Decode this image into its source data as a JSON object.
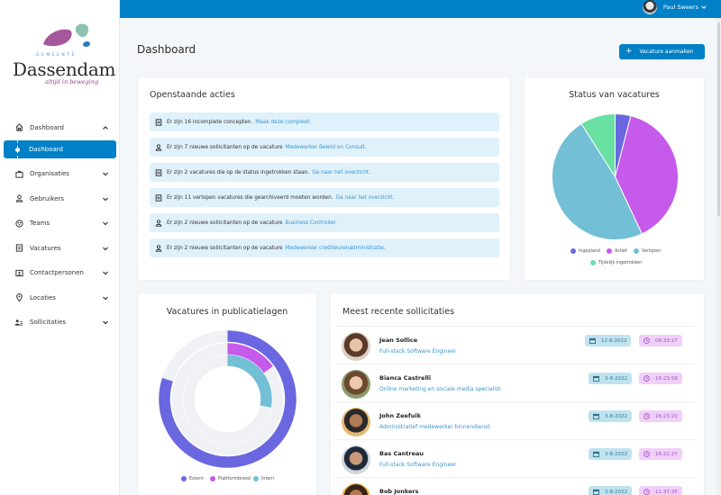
{
  "topbar": {
    "user_name": "Paul Sweers"
  },
  "logo": {
    "small": "GEMEENTE",
    "name": "Dassendam",
    "tagline": "altijd in beweging"
  },
  "sidebar": {
    "items": [
      {
        "label": "Dashboard",
        "icon": "home-icon",
        "expanded": true
      },
      {
        "label": "Organisaties",
        "icon": "briefcase-icon"
      },
      {
        "label": "Gebruikers",
        "icon": "user-icon"
      },
      {
        "label": "Teams",
        "icon": "team-icon"
      },
      {
        "label": "Vacatures",
        "icon": "document-icon"
      },
      {
        "label": "Contactpersonen",
        "icon": "contact-card-icon"
      },
      {
        "label": "Locaties",
        "icon": "location-pin-icon"
      },
      {
        "label": "Sollicitaties",
        "icon": "users-icon"
      }
    ],
    "active_sub": "Dashboard"
  },
  "main": {
    "title": "Dashboard",
    "create_button": "Vacature aanmaken"
  },
  "actions": {
    "title": "Openstaande acties",
    "items": [
      {
        "icon": "document-icon",
        "text": "Er zijn 16 incomplete concepten.",
        "link": "Maak deze compleet."
      },
      {
        "icon": "user-icon",
        "text": "Er zijn 7 nieuwe sollicitanten op de vacature",
        "link": "Medewerker Beleid en Consult."
      },
      {
        "icon": "document-icon",
        "text": "Er zijn 2 vacatures die op de status ingetrokken staan.",
        "link": "Ga naar het overzicht."
      },
      {
        "icon": "document-icon",
        "text": "Er zijn 11 verlopen vacatures die gearchiveerd moeten worden.",
        "link": "Ga naar het overzicht."
      },
      {
        "icon": "user-icon",
        "text": "Er zijn 2 nieuwe sollicitanten op de vacature",
        "link": "Business Controller."
      },
      {
        "icon": "user-icon",
        "text": "Er zijn 2 nieuwe sollicitanten op de vacature",
        "link": "Medewerker crediteurenadministratie."
      }
    ]
  },
  "status_chart": {
    "title": "Status van vacatures",
    "legend": [
      "Ingepland",
      "Actief",
      "Verlopen",
      "Tijdelijk ingetrokken"
    ]
  },
  "publication_chart": {
    "title": "Vacatures in publicatielagen",
    "legend": [
      "Extern",
      "Plattformbreed",
      "Intern"
    ]
  },
  "recent": {
    "title": "Meest recente sollicitaties",
    "rows": [
      {
        "name": "Jean Sollice",
        "job": "Full-stack Software Engineer",
        "date": "12-8-2022",
        "time": "08:33:27"
      },
      {
        "name": "Bianca Castrelli",
        "job": "Online marketing en sociale media specialist",
        "date": "3-8-2022",
        "time": "16:23:58"
      },
      {
        "name": "John Zeefuik",
        "job": "Administratief medewerker binnendienst",
        "date": "3-8-2022",
        "time": "16:23:20"
      },
      {
        "name": "Bas Cantreau",
        "job": "Full-stack Software Engineer",
        "date": "3-8-2022",
        "time": "16:22:27"
      },
      {
        "name": "Bob Jonkers",
        "job": "",
        "date": "3-8-2022",
        "time": "11:37:35"
      }
    ]
  },
  "colors": {
    "primary": "#0080c6",
    "ingepland": "#6a67e0",
    "actief": "#c65aea",
    "verlopen": "#72bfd6",
    "ingetrokken": "#6adfa2",
    "track": "#f0f1f4"
  },
  "chart_data": [
    {
      "type": "pie",
      "title": "Status van vacatures",
      "categories": [
        "Ingepland",
        "Actief",
        "Verlopen",
        "Tijdelijk ingetrokken"
      ],
      "values": [
        4,
        39,
        48,
        9
      ],
      "unit": "%",
      "legend_position": "bottom"
    },
    {
      "type": "radial-bar",
      "title": "Vacatures in publicatielagen",
      "categories": [
        "Extern",
        "Plattformbreed",
        "Intern"
      ],
      "values": [
        80,
        15,
        28
      ],
      "unit": "%",
      "legend_position": "bottom"
    }
  ]
}
